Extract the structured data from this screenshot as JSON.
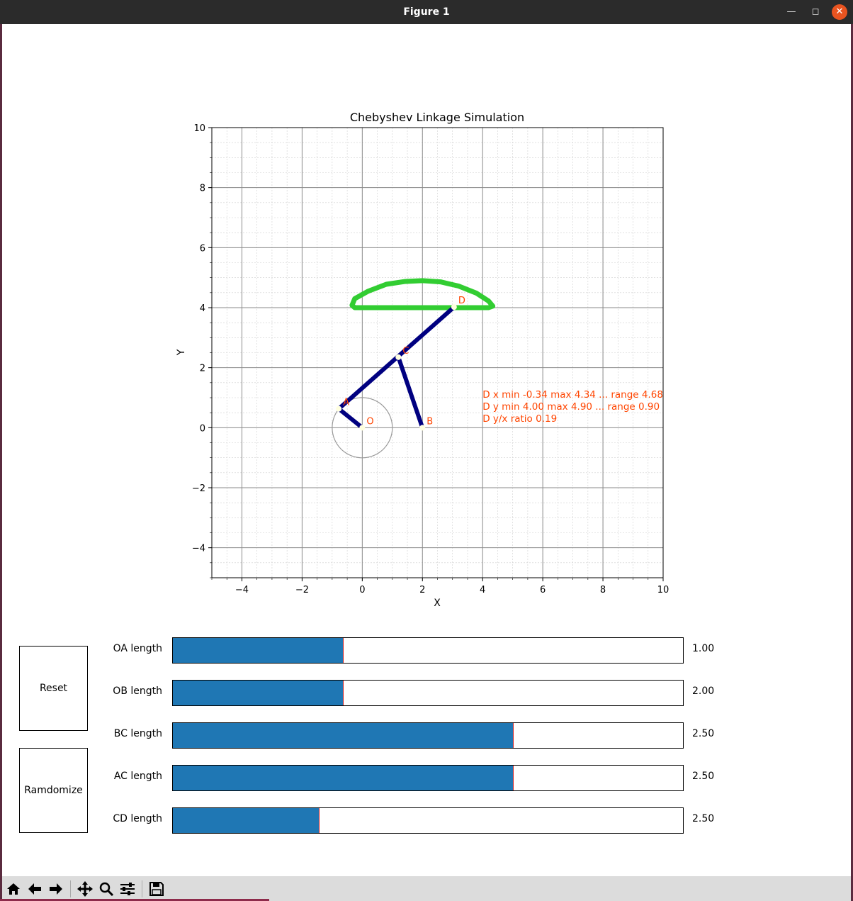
{
  "window": {
    "title": "Figure 1",
    "minimize_icon": "minimize-icon",
    "maximize_icon": "maximize-icon",
    "close_icon": "close-icon",
    "close_color": "#e95420"
  },
  "plot": {
    "title": "Chebyshev Linkage Simulation",
    "xlabel": "X",
    "ylabel": "Y",
    "xlim": [
      -5,
      10
    ],
    "ylim": [
      -5,
      10
    ],
    "xticks": [
      "−4",
      "−2",
      "0",
      "2",
      "4",
      "6",
      "8",
      "10"
    ],
    "yticks": [
      "−4",
      "−2",
      "0",
      "2",
      "4",
      "6",
      "8",
      "10"
    ],
    "grid": true,
    "points": [
      {
        "label": "O",
        "x": 0.0,
        "y": 0.0
      },
      {
        "label": "A",
        "x": -0.78,
        "y": 0.63
      },
      {
        "label": "B",
        "x": 2.0,
        "y": 0.0
      },
      {
        "label": "C",
        "x": 1.2,
        "y": 2.35
      },
      {
        "label": "D",
        "x": 3.05,
        "y": 4.02
      }
    ],
    "links": [
      [
        "O",
        "A"
      ],
      [
        "A",
        "D"
      ],
      [
        "C",
        "B"
      ]
    ],
    "crank_circle": {
      "cx": 0.0,
      "cy": 0.0,
      "r": 1.0
    },
    "trajectory": [
      [
        -0.34,
        4.08
      ],
      [
        -0.25,
        4.3
      ],
      [
        0.2,
        4.55
      ],
      [
        0.8,
        4.78
      ],
      [
        1.4,
        4.87
      ],
      [
        2.0,
        4.9
      ],
      [
        2.6,
        4.86
      ],
      [
        3.2,
        4.72
      ],
      [
        3.8,
        4.48
      ],
      [
        4.2,
        4.22
      ],
      [
        4.34,
        4.05
      ],
      [
        4.2,
        4.0
      ],
      [
        3.6,
        4.0
      ],
      [
        3.0,
        4.0
      ],
      [
        2.0,
        4.0
      ],
      [
        1.0,
        4.0
      ],
      [
        0.2,
        4.0
      ],
      [
        -0.25,
        4.0
      ],
      [
        -0.34,
        4.08
      ]
    ],
    "info_lines": [
      "D x min -0.34 max 4.34  ... range 4.68",
      "D y min 4.00 max 4.90  ... range 0.90",
      "D y/x ratio 0.19"
    ],
    "colors": {
      "link": "#000080",
      "trajectory": "#32cd32",
      "annotation": "#ff4500",
      "joint": "#ffffe0"
    }
  },
  "buttons": {
    "reset_label": "Reset",
    "randomize_label": "Ramdomize"
  },
  "sliders": [
    {
      "label": "OA length",
      "value": "1.00",
      "fill": 0.333
    },
    {
      "label": "OB length",
      "value": "2.00",
      "fill": 0.333
    },
    {
      "label": "BC length",
      "value": "2.50",
      "fill": 0.667
    },
    {
      "label": "AC length",
      "value": "2.50",
      "fill": 0.667
    },
    {
      "label": "CD length",
      "value": "2.50",
      "fill": 0.286
    }
  ],
  "toolbar": {
    "items": [
      "home-icon",
      "back-icon",
      "forward-icon",
      "pan-icon",
      "zoom-icon",
      "configure-icon",
      "save-icon"
    ]
  }
}
